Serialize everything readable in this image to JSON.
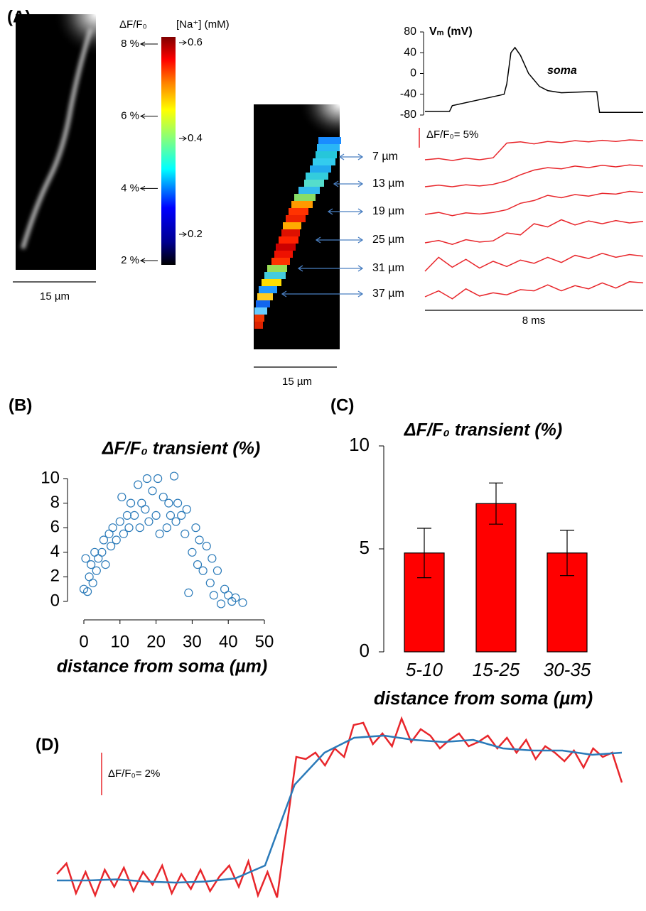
{
  "panel_labels": [
    "(A)",
    "(B)",
    "(C)",
    "(D)"
  ],
  "panel_a": {
    "image_scale_bars": [
      {
        "value": 15,
        "label": "15 µm"
      },
      {
        "value": 15,
        "label": "15 µm"
      }
    ],
    "colorbar": {
      "left_title": "ΔF/F₀",
      "right_title": "[Na⁺] (mM)",
      "left_ticks": [
        {
          "value": 8,
          "label": "8 %"
        },
        {
          "value": 6,
          "label": "6 %"
        },
        {
          "value": 4,
          "label": "4 %"
        },
        {
          "value": 2,
          "label": "2 %"
        }
      ],
      "right_ticks": [
        0.6,
        0.4,
        0.2
      ]
    }
  },
  "chart_data": [
    {
      "type": "line",
      "y_label": "Vₘ (mV)",
      "annotation": "soma",
      "color": "#000000",
      "x": [
        0,
        0.9,
        1.0,
        2.9,
        3.0,
        3.15,
        3.3,
        3.5,
        3.8,
        4.2,
        4.5,
        5.0,
        6.0,
        6.3,
        6.4,
        7.0,
        8.0
      ],
      "values": [
        -73,
        -73,
        -62,
        -40,
        -20,
        40,
        50,
        35,
        0,
        -25,
        -33,
        -37,
        -35,
        -35,
        -75,
        -75,
        -75
      ],
      "xlim": [
        0,
        8
      ],
      "ylim": [
        -80,
        80
      ],
      "yticks": [
        80,
        40,
        0,
        -40,
        -80
      ]
    },
    {
      "type": "stacked-traces",
      "xlim": [
        0,
        8
      ],
      "x": [
        0,
        0.5,
        1,
        1.5,
        2,
        2.5,
        3,
        3.5,
        4,
        4.5,
        5,
        5.5,
        6,
        6.5,
        7,
        7.5,
        8
      ],
      "scale_bar_y": {
        "value": 5,
        "label": "ΔF/F₀= 5%"
      },
      "scale_bar_x": {
        "value": 8,
        "label": "8 ms"
      },
      "series": [
        {
          "name": "7 µm",
          "color": "#e8262b",
          "values": [
            0,
            0.3,
            -0.2,
            0.4,
            0,
            0.5,
            4.2,
            4.5,
            4.0,
            4.6,
            4.3,
            4.8,
            4.5,
            4.9,
            4.6,
            5.0,
            4.8
          ]
        },
        {
          "name": "13 µm",
          "color": "#e8262b",
          "values": [
            0,
            0.4,
            0,
            0.5,
            0.2,
            0.6,
            1.5,
            3.0,
            4.2,
            4.8,
            4.5,
            5.2,
            4.8,
            5.4,
            5.0,
            5.5,
            5.2
          ]
        },
        {
          "name": "19 µm",
          "color": "#e8262b",
          "values": [
            0,
            0.5,
            -0.3,
            0.4,
            0.1,
            0.5,
            1.2,
            2.8,
            3.5,
            4.8,
            4.2,
            5.0,
            4.6,
            5.3,
            5.1,
            5.8,
            5.5
          ]
        },
        {
          "name": "25 µm",
          "color": "#e8262b",
          "values": [
            0,
            0.6,
            -0.4,
            0.8,
            0.2,
            0.5,
            2.5,
            2.0,
            4.8,
            4.0,
            5.8,
            4.5,
            5.5,
            4.8,
            5.6,
            5.0,
            5.4
          ]
        },
        {
          "name": "31 µm",
          "color": "#e8262b",
          "values": [
            0,
            3.5,
            1.0,
            3.0,
            0.8,
            2.5,
            1.2,
            2.8,
            2.0,
            3.5,
            2.2,
            4.0,
            3.2,
            4.5,
            3.5,
            4.2,
            3.8
          ]
        },
        {
          "name": "37 µm",
          "color": "#e8262b",
          "values": [
            0,
            1.5,
            -0.5,
            2.0,
            0.2,
            1.0,
            0.5,
            1.8,
            1.5,
            3.0,
            1.5,
            2.8,
            2.0,
            3.5,
            2.2,
            3.8,
            3.5
          ]
        }
      ]
    },
    {
      "type": "scatter",
      "title": "ΔF/F₀ transient (%)",
      "x_label": "distance from soma (µm)",
      "color": "#2a7ab9",
      "x": [
        0,
        0.5,
        1,
        1.5,
        2,
        2.5,
        3,
        3.5,
        4,
        5,
        5.5,
        6,
        7,
        7.5,
        8,
        9,
        10,
        10.5,
        11,
        12,
        12.5,
        13,
        14,
        15,
        15.5,
        16,
        17,
        17.5,
        18,
        19,
        20,
        20.5,
        21,
        22,
        23,
        23.5,
        24,
        25,
        25.5,
        26,
        27,
        28,
        28.5,
        29,
        30,
        31,
        31.5,
        32,
        33,
        34,
        35,
        35.5,
        36,
        37,
        38,
        39,
        40,
        41,
        42,
        44
      ],
      "values": [
        1,
        3.5,
        0.8,
        2,
        3,
        1.5,
        4,
        2.5,
        3.5,
        4,
        5,
        3,
        5.5,
        4.5,
        6,
        5,
        6.5,
        8.5,
        5.5,
        7,
        6,
        8,
        7,
        9.5,
        6,
        8,
        7.5,
        10,
        6.5,
        9,
        7,
        10,
        5.5,
        8.5,
        6,
        8,
        7,
        10.2,
        6.5,
        8,
        7,
        5.5,
        7.5,
        0.7,
        4,
        6,
        3,
        5,
        2.5,
        4.5,
        1.5,
        3.5,
        0.5,
        2.5,
        -0.2,
        1,
        0.5,
        0,
        0.3,
        -0.1
      ],
      "xlim": [
        0,
        50
      ],
      "xticks": [
        0,
        10,
        20,
        30,
        40,
        50
      ],
      "ylim": [
        0,
        10
      ],
      "yticks": [
        0,
        2,
        4,
        6,
        8,
        10
      ]
    },
    {
      "type": "bar",
      "title": "ΔF/F₀ transient (%)",
      "x_label": "distance from soma (µm)",
      "color": "#ff0000",
      "categories": [
        "5-10",
        "15-25",
        "30-35"
      ],
      "values": [
        4.8,
        7.2,
        4.8
      ],
      "errors": [
        1.2,
        1.0,
        1.1
      ],
      "ylim": [
        0,
        10
      ],
      "yticks": [
        0,
        5,
        10
      ]
    },
    {
      "type": "line",
      "scale_bar_y": {
        "value": 2,
        "label": "ΔF/F₀= 2%"
      },
      "series": [
        {
          "color": "#e8262b",
          "values": [
            0.3,
            0.8,
            -0.6,
            0.4,
            -0.7,
            0.5,
            -0.3,
            0.6,
            -0.5,
            0.4,
            -0.2,
            0.7,
            -0.6,
            0.3,
            -0.4,
            0.5,
            -0.5,
            0.2,
            0.7,
            -0.3,
            0.9,
            -0.7,
            0.4,
            -0.8,
            2.5,
            5.8,
            5.7,
            6.0,
            5.4,
            6.2,
            5.8,
            7.3,
            7.4,
            6.4,
            6.9,
            6.3,
            7.6,
            6.5,
            7.1,
            6.8,
            6.2,
            6.6,
            6.9,
            6.3,
            6.5,
            6.8,
            6.2,
            6.7,
            6.0,
            6.6,
            5.7,
            6.3,
            6.0,
            5.6,
            6.1,
            5.3,
            6.2,
            5.8,
            6.0,
            4.6
          ]
        },
        {
          "color": "#2a7ab9",
          "values": [
            0,
            0,
            0.05,
            -0.05,
            -0.1,
            -0.05,
            0.1,
            0.7,
            4.5,
            6.0,
            6.7,
            6.8,
            6.6,
            6.5,
            6.6,
            6.2,
            6.1,
            6.1,
            5.9,
            6.0
          ]
        }
      ]
    }
  ]
}
